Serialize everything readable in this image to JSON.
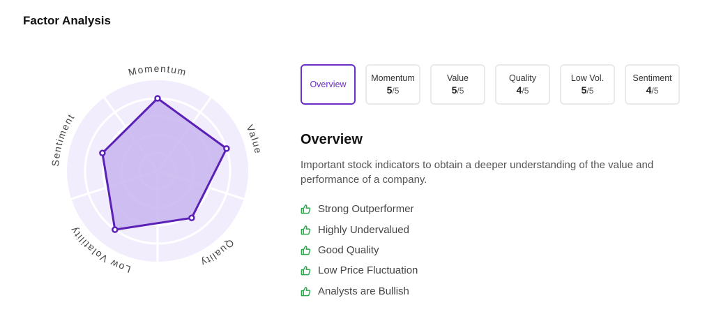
{
  "page_title": "Factor Analysis",
  "radar": {
    "max_score": 5,
    "factors": [
      {
        "label": "Momentum",
        "score": 5
      },
      {
        "label": "Value",
        "score": 5
      },
      {
        "label": "Quality",
        "score": 4
      },
      {
        "label": "Low Volatility",
        "score": 5
      },
      {
        "label": "Sentiment",
        "score": 4
      }
    ],
    "fill_color": "#c8b4ee",
    "line_color": "#5b21b6",
    "background_color": "#f1edfc"
  },
  "tabs": [
    {
      "name": "Overview",
      "active": true
    },
    {
      "name": "Momentum",
      "score": "5",
      "denominator": "/5"
    },
    {
      "name": "Value",
      "score": "5",
      "denominator": "/5"
    },
    {
      "name": "Quality",
      "score": "4",
      "denominator": "/5"
    },
    {
      "name": "Low Vol.",
      "score": "5",
      "denominator": "/5"
    },
    {
      "name": "Sentiment",
      "score": "4",
      "denominator": "/5"
    }
  ],
  "overview": {
    "title": "Overview",
    "description": "Important stock indicators to obtain a deeper understanding of the value and performance of a company.",
    "traits": [
      {
        "icon": "thumbs-up-icon",
        "text": "Strong Outperformer"
      },
      {
        "icon": "thumbs-up-icon",
        "text": "Highly Undervalued"
      },
      {
        "icon": "thumbs-up-icon",
        "text": "Good Quality"
      },
      {
        "icon": "thumbs-up-icon",
        "text": "Low Price Fluctuation"
      },
      {
        "icon": "thumbs-up-icon",
        "text": "Analysts are Bullish"
      }
    ],
    "accent_color": "#6b2fc7",
    "icon_color": "#2aa84a"
  }
}
